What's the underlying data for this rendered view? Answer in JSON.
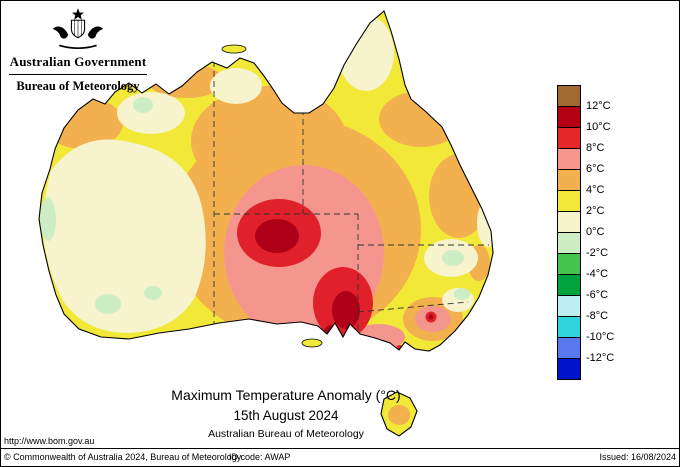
{
  "header": {
    "line1": "Australian Government",
    "line2": "Bureau of Meteorology"
  },
  "titles": {
    "main": "Maximum Temperature Anomaly (°C)",
    "date": "15th August 2024",
    "org": "Australian Bureau of Meteorology"
  },
  "legend": {
    "labels": [
      "12°C",
      "10°C",
      "8°C",
      "6°C",
      "4°C",
      "2°C",
      "0°C",
      "-2°C",
      "-4°C",
      "-6°C",
      "-8°C",
      "-10°C",
      "-12°C"
    ],
    "colors": [
      "#9e6a2e",
      "#b40015",
      "#e62828",
      "#f4968e",
      "#f2b04e",
      "#f2e837",
      "#f6f3cd",
      "#cdeec4",
      "#46c34c",
      "#00a33e",
      "#bdeef0",
      "#2fd4dc",
      "#5a78ee",
      "#0014c8"
    ]
  },
  "footer": {
    "url": "http://www.bom.gov.au",
    "copyright": "© Commonwealth of Australia 2024, Bureau of Meteorology",
    "id_code": "ID code: AWAP",
    "issued": "Issued: 16/08/2024"
  },
  "map": {
    "region": "Australia",
    "fills": {
      "base_yellow": "#f2e837",
      "orange": "#f2b04e",
      "pink": "#f4968e",
      "red": "#e0202a",
      "dark_red": "#ae0016",
      "cream": "#f6f3cd",
      "pale_green": "#cdeec4"
    }
  }
}
